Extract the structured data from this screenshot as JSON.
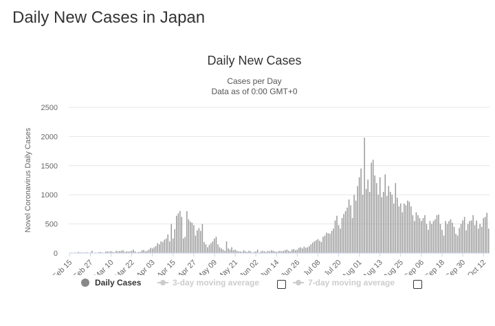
{
  "page": {
    "title": "Daily New Cases in Japan"
  },
  "legend": {
    "daily_cases": "Daily Cases",
    "ma3": "3-day moving average",
    "ma7": "7-day moving average"
  },
  "chart_data": {
    "type": "bar",
    "title": "Daily New Cases",
    "subtitle_line1": "Cases per Day",
    "subtitle_line2": "Data as of 0:00 GMT+0",
    "ylabel": "Novel Coronavirus Daily Cases",
    "xlabel": "",
    "ylim": [
      0,
      2500
    ],
    "yticks": [
      0,
      500,
      1000,
      1500,
      2000,
      2500
    ],
    "grid": true,
    "legend_position": "bottom",
    "bar_color": "#999999",
    "x_tick_labels": [
      "Feb 15",
      "Feb 27",
      "Mar 10",
      "Mar 22",
      "Apr 03",
      "Apr 15",
      "Apr 27",
      "May 09",
      "May 21",
      "Jun 02",
      "Jun 14",
      "Jun 26",
      "Jul 08",
      "Jul 20",
      "Aug 01",
      "Aug 13",
      "Aug 25",
      "Sep 06",
      "Sep 18",
      "Sep 30",
      "Oct 12"
    ],
    "x_tick_interval_days": 12,
    "start_date": "Feb 15",
    "series": [
      {
        "name": "Daily Cases",
        "values": [
          5,
          8,
          4,
          10,
          3,
          20,
          12,
          10,
          8,
          10,
          15,
          5,
          10,
          40,
          5,
          10,
          5,
          15,
          20,
          10,
          8,
          25,
          30,
          20,
          35,
          20,
          15,
          40,
          30,
          35,
          40,
          50,
          20,
          30,
          25,
          30,
          40,
          60,
          30,
          10,
          20,
          20,
          50,
          55,
          30,
          40,
          60,
          90,
          80,
          100,
          120,
          170,
          150,
          200,
          190,
          230,
          250,
          320,
          200,
          500,
          250,
          410,
          640,
          680,
          720,
          620,
          250,
          280,
          720,
          580,
          540,
          520,
          480,
          300,
          390,
          430,
          380,
          500,
          190,
          150,
          100,
          140,
          170,
          200,
          250,
          280,
          150,
          100,
          80,
          60,
          40,
          200,
          80,
          60,
          100,
          50,
          60,
          40,
          30,
          30,
          20,
          50,
          30,
          20,
          40,
          30,
          10,
          20,
          30,
          60,
          10,
          30,
          40,
          30,
          20,
          40,
          30,
          50,
          40,
          30,
          20,
          30,
          40,
          30,
          40,
          50,
          60,
          40,
          30,
          60,
          70,
          50,
          60,
          90,
          100,
          80,
          110,
          90,
          100,
          120,
          150,
          180,
          200,
          220,
          240,
          210,
          190,
          280,
          300,
          350,
          340,
          330,
          380,
          420,
          560,
          640,
          480,
          420,
          600,
          670,
          720,
          780,
          920,
          820,
          600,
          1000,
          900,
          1150,
          1300,
          1450,
          1000,
          1980,
          1100,
          1260,
          1050,
          1550,
          1600,
          1330,
          1200,
          1000,
          1300,
          960,
          1050,
          1350,
          980,
          1150,
          1050,
          1000,
          850,
          1200,
          950,
          800,
          850,
          700,
          850,
          820,
          900,
          880,
          800,
          650,
          550,
          700,
          650,
          600,
          550,
          600,
          650,
          500,
          400,
          550,
          500,
          550,
          580,
          650,
          660,
          500,
          400,
          300,
          550,
          500,
          550,
          580,
          520,
          450,
          330,
          300,
          430,
          500,
          560,
          620,
          390,
          500,
          550,
          560,
          650,
          480,
          560,
          420,
          500,
          450,
          600,
          620,
          690,
          420
        ]
      }
    ]
  }
}
